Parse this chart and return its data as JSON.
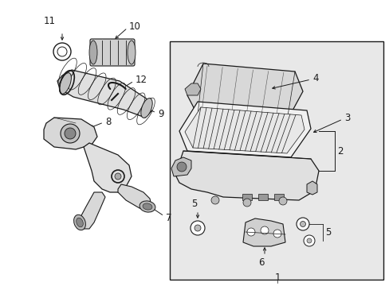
{
  "bg_color": "#ffffff",
  "box_bg": "#e8e8e8",
  "line_color": "#1a1a1a",
  "text_color": "#1a1a1a",
  "part_fill": "#ffffff",
  "part_shade": "#d0d0d0",
  "part_dark": "#a0a0a0"
}
